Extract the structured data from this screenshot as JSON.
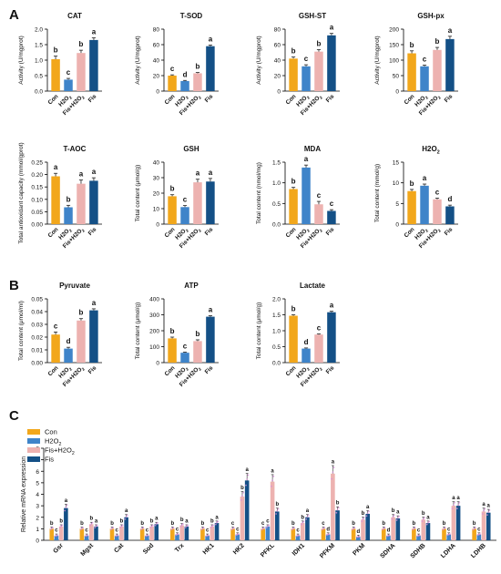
{
  "colors": {
    "Con": "#F2A71B",
    "H2O2": "#3F84C9",
    "Fis+H2O2": "#EDB2B0",
    "Fis": "#145086"
  },
  "labels": {
    "cats": [
      "Con",
      "H2O2",
      "Fis+H2O2",
      "Fis"
    ],
    "legend": [
      "Con",
      "H2O2",
      "Fis+H2O2",
      "Fis"
    ],
    "panel_letters": [
      "A",
      "B",
      "C"
    ]
  },
  "chart_data": [
    {
      "type": "bar",
      "panel": "A",
      "title": "CAT",
      "ylabel": "Activity (U/mgprot)",
      "ylim": [
        0,
        2.0
      ],
      "yticks": [
        "0.0",
        "0.5",
        "1.0",
        "1.5",
        "2.0"
      ],
      "categories": [
        "Con",
        "H2O2",
        "Fis+H2O2",
        "Fis"
      ],
      "values": [
        1.03,
        0.37,
        1.23,
        1.65
      ],
      "errors": [
        0.1,
        0.04,
        0.09,
        0.07
      ],
      "letters": [
        "b",
        "c",
        "b",
        "a"
      ]
    },
    {
      "type": "bar",
      "panel": "A",
      "title": "T-SOD",
      "ylabel": "Activity (U/mgprot)",
      "ylim": [
        0,
        80
      ],
      "yticks": [
        "0",
        "20",
        "40",
        "60",
        "80"
      ],
      "categories": [
        "Con",
        "H2O2",
        "Fis+H2O2",
        "Fis"
      ],
      "values": [
        20,
        13,
        23,
        58
      ],
      "errors": [
        1.0,
        0.8,
        1.0,
        1.5
      ],
      "letters": [
        "c",
        "d",
        "b",
        "a"
      ]
    },
    {
      "type": "bar",
      "panel": "A",
      "title": "GSH-ST",
      "ylabel": "Activity (U/mgprot)",
      "ylim": [
        0,
        80
      ],
      "yticks": [
        "0",
        "20",
        "40",
        "60",
        "80"
      ],
      "categories": [
        "Con",
        "H2O2",
        "Fis+H2O2",
        "Fis"
      ],
      "values": [
        42,
        32,
        51,
        72
      ],
      "errors": [
        2.0,
        2.0,
        2.5,
        2.5
      ],
      "letters": [
        "b",
        "c",
        "b",
        "a"
      ]
    },
    {
      "type": "bar",
      "panel": "A",
      "title": "GSH-px",
      "ylabel": "Activity (U/mgprot)",
      "ylim": [
        0,
        200
      ],
      "yticks": [
        "0",
        "50",
        "100",
        "150",
        "200"
      ],
      "categories": [
        "Con",
        "H2O2",
        "Fis+H2O2",
        "Fis"
      ],
      "values": [
        122,
        80,
        133,
        168
      ],
      "errors": [
        8,
        4,
        8,
        9
      ],
      "letters": [
        "b",
        "c",
        "b",
        "a"
      ]
    },
    {
      "type": "bar",
      "panel": "A",
      "title": "T-AOC",
      "ylabel": "Total antioxidant capacity (mmol/gprot)",
      "ylim": [
        0,
        0.25
      ],
      "yticks": [
        "0.00",
        "0.05",
        "0.10",
        "0.15",
        "0.20",
        "0.25"
      ],
      "categories": [
        "Con",
        "H2O2",
        "Fis+H2O2",
        "Fis"
      ],
      "values": [
        0.193,
        0.068,
        0.163,
        0.175
      ],
      "errors": [
        0.012,
        0.008,
        0.015,
        0.012
      ],
      "letters": [
        "a",
        "b",
        "a",
        "a"
      ]
    },
    {
      "type": "bar",
      "panel": "A",
      "title": "GSH",
      "ylabel": "Total content (μmol/g)",
      "ylim": [
        0,
        40
      ],
      "yticks": [
        "0",
        "10",
        "20",
        "30",
        "40"
      ],
      "categories": [
        "Con",
        "H2O2",
        "Fis+H2O2",
        "Fis"
      ],
      "values": [
        18,
        11,
        27,
        27.5
      ],
      "errors": [
        1.0,
        1.0,
        2.0,
        2.0
      ],
      "letters": [
        "b",
        "c",
        "a",
        "a"
      ]
    },
    {
      "type": "bar",
      "panel": "A",
      "title": "MDA",
      "ylabel": "Total content (nmol/mg)",
      "ylim": [
        0,
        1.5
      ],
      "yticks": [
        "0.0",
        "0.5",
        "1.0",
        "1.5"
      ],
      "categories": [
        "Con",
        "H2O2",
        "Fis+H2O2",
        "Fis"
      ],
      "values": [
        0.85,
        1.37,
        0.48,
        0.32
      ],
      "errors": [
        0.04,
        0.06,
        0.07,
        0.03
      ],
      "letters": [
        "b",
        "a",
        "c",
        "c"
      ]
    },
    {
      "type": "bar",
      "panel": "A",
      "title": "H2O2",
      "ylabel": "Total content (mmol/g)",
      "ylim": [
        0,
        15
      ],
      "yticks": [
        "0",
        "5",
        "10",
        "15"
      ],
      "categories": [
        "Con",
        "H2O2",
        "Fis+H2O2",
        "Fis"
      ],
      "values": [
        8.0,
        9.3,
        6.0,
        4.3
      ],
      "errors": [
        0.4,
        0.4,
        0.3,
        0.3
      ],
      "letters": [
        "b",
        "a",
        "c",
        "d"
      ]
    },
    {
      "type": "bar",
      "panel": "B",
      "title": "Pyruvate",
      "ylabel": "Total content (μmol/ml)",
      "ylim": [
        0,
        0.05
      ],
      "yticks": [
        "0.00",
        "0.01",
        "0.02",
        "0.03",
        "0.04",
        "0.05"
      ],
      "categories": [
        "Con",
        "H2O2",
        "Fis+H2O2",
        "Fis"
      ],
      "values": [
        0.022,
        0.011,
        0.033,
        0.041
      ],
      "errors": [
        0.002,
        0.001,
        0.0015,
        0.0012
      ],
      "letters": [
        "c",
        "d",
        "b",
        "a"
      ]
    },
    {
      "type": "bar",
      "panel": "B",
      "title": "ATP",
      "ylabel": "Total content (μmol/g)",
      "ylim": [
        0,
        400
      ],
      "yticks": [
        "0",
        "100",
        "200",
        "300",
        "400"
      ],
      "categories": [
        "Con",
        "H2O2",
        "Fis+H2O2",
        "Fis"
      ],
      "values": [
        152,
        62,
        135,
        288
      ],
      "errors": [
        8,
        4,
        8,
        6
      ],
      "letters": [
        "b",
        "c",
        "b",
        "a"
      ]
    },
    {
      "type": "bar",
      "panel": "B",
      "title": "Lactate",
      "ylabel": "Total content (μmol/g)",
      "ylim": [
        0,
        2.0
      ],
      "yticks": [
        "0.0",
        "0.5",
        "1.0",
        "1.5",
        "2.0"
      ],
      "categories": [
        "Con",
        "H2O2",
        "Fis+H2O2",
        "Fis"
      ],
      "values": [
        1.47,
        0.44,
        0.88,
        1.58
      ],
      "errors": [
        0.03,
        0.02,
        0.02,
        0.03
      ],
      "letters": [
        "b",
        "d",
        "c",
        "a"
      ]
    },
    {
      "type": "bar",
      "panel": "C",
      "title": "",
      "ylabel": "Relative mRNA expression",
      "ylim": [
        0,
        8
      ],
      "yticks": [
        "0",
        "1",
        "2",
        "3",
        "4",
        "5",
        "6",
        "7",
        "8"
      ],
      "categories": [
        "Gsr",
        "Mgst",
        "Cat",
        "Sod",
        "Trx",
        "HK1",
        "HK2",
        "PFKL",
        "IDH1",
        "PFKM",
        "PKM",
        "SDHA",
        "SDHB",
        "LDHA",
        "LDHB"
      ],
      "series": [
        {
          "name": "Con",
          "values": [
            1.0,
            1.0,
            1.0,
            1.0,
            1.0,
            1.0,
            1.0,
            1.0,
            1.0,
            1.0,
            1.0,
            1.0,
            1.0,
            1.0,
            1.0
          ],
          "letters": [
            "b",
            "b",
            "b",
            "b",
            "b",
            "b",
            "c",
            "c",
            "b",
            "c",
            "b",
            "b",
            "b",
            "b",
            "b"
          ]
        },
        {
          "name": "H2O2",
          "values": [
            0.4,
            0.4,
            0.4,
            0.4,
            0.5,
            0.4,
            0.5,
            1.2,
            0.4,
            0.5,
            0.3,
            0.4,
            0.4,
            0.5,
            0.5
          ],
          "letters": [
            "c",
            "c",
            "c",
            "c",
            "c",
            "c",
            "c",
            "c",
            "c",
            "d",
            "d",
            "d",
            "c",
            "c",
            "c"
          ]
        },
        {
          "name": "Fis+H2O2",
          "values": [
            1.2,
            1.4,
            1.2,
            1.2,
            1.3,
            1.2,
            3.8,
            5.1,
            1.5,
            5.8,
            1.8,
            2.0,
            1.8,
            3.0,
            2.5
          ],
          "letters": [
            "b",
            "b",
            "b",
            "b",
            "b",
            "b",
            "b",
            "a",
            "b",
            "a",
            "b",
            "b",
            "b",
            "a",
            "a"
          ]
        },
        {
          "name": "Fis",
          "values": [
            2.8,
            1.2,
            2.0,
            1.4,
            1.2,
            1.5,
            5.2,
            2.5,
            2.0,
            2.6,
            2.3,
            1.9,
            1.5,
            3.0,
            2.4
          ],
          "letters": [
            "a",
            "a",
            "a",
            "a",
            "a",
            "a",
            "a",
            "b",
            "a",
            "b",
            "a",
            "a",
            "a",
            "a",
            "a"
          ]
        }
      ]
    }
  ]
}
